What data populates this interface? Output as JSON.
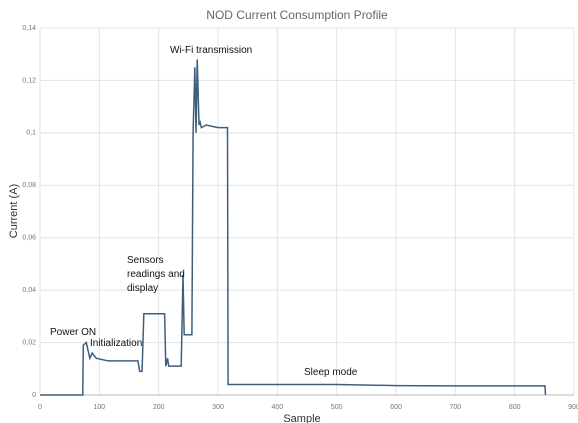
{
  "chart_data": {
    "type": "line",
    "title": "NOD Current Consumption Profile",
    "xlabel": "Sample",
    "ylabel": "Current (A)",
    "series": [
      {
        "name": "Current",
        "color": "#3e5f7c",
        "x": [
          0,
          72,
          73,
          78,
          84,
          88,
          95,
          115,
          135,
          165,
          168,
          172,
          175,
          210,
          212,
          215,
          217,
          220,
          238,
          241,
          243,
          245,
          256,
          258,
          261,
          263,
          265,
          268,
          270,
          272,
          280,
          300,
          316,
          317,
          320,
          400,
          500,
          600,
          700,
          851,
          852
        ],
        "values": [
          0,
          0,
          0.019,
          0.02,
          0.014,
          0.016,
          0.014,
          0.013,
          0.013,
          0.013,
          0.009,
          0.009,
          0.031,
          0.031,
          0.011,
          0.014,
          0.011,
          0.011,
          0.011,
          0.046,
          0.023,
          0.023,
          0.023,
          0.1,
          0.125,
          0.1,
          0.128,
          0.103,
          0.104,
          0.102,
          0.103,
          0.102,
          0.102,
          0.004,
          0.004,
          0.004,
          0.004,
          0.0036,
          0.0035,
          0.0035,
          0
        ]
      }
    ],
    "xlim": [
      0,
      900
    ],
    "xticks": [
      0,
      100,
      200,
      300,
      400,
      500,
      600,
      700,
      800,
      900
    ],
    "ylim": [
      0,
      0.14
    ],
    "yticks": [
      0,
      {
        "value": 0.02,
        "label": "0,02"
      },
      {
        "value": 0.04,
        "label": "0,04"
      },
      {
        "value": 0.06,
        "label": "0,06"
      },
      {
        "value": 0.08,
        "label": "0,08"
      },
      {
        "value": 0.1,
        "label": "0,1"
      },
      {
        "value": 0.12,
        "label": "0,12"
      },
      {
        "value": 0.14,
        "label": "0,14"
      }
    ],
    "grid": true,
    "annotations": [
      "Power ON",
      "Initialization",
      "Sensors readings and display",
      "Wi-Fi transmission",
      "Sleep mode"
    ]
  }
}
